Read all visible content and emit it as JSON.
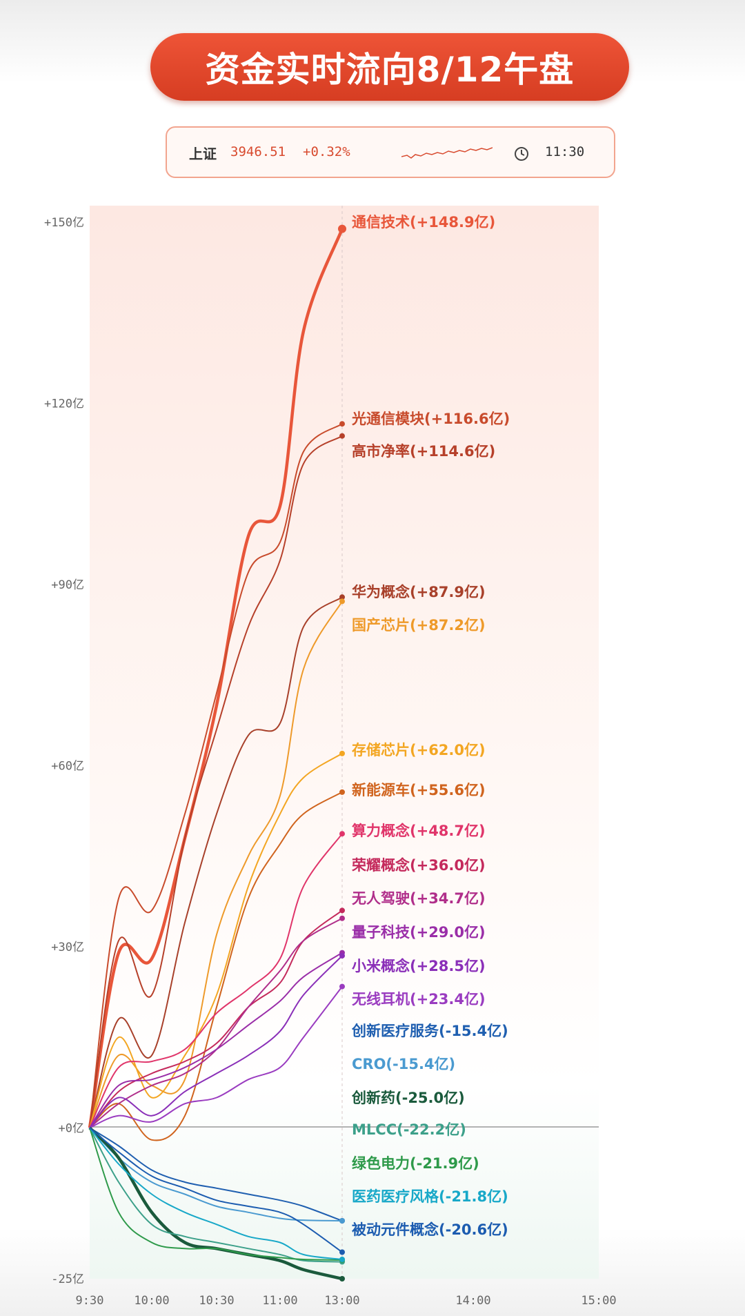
{
  "header": {
    "title": "资金实时流向8/12午盘"
  },
  "index_box": {
    "name": "上证",
    "value": "3946.51",
    "change": "+0.32%",
    "time": "11:30",
    "sparkline_icon": "sparkline-icon",
    "clock_icon": "clock-icon"
  },
  "chart_data": {
    "type": "line",
    "title": "资金实时流向8/12午盘",
    "xlabel": "",
    "ylabel": "",
    "x_ticks": [
      "9:30",
      "10:00",
      "10:30",
      "11:00",
      "13:00",
      "14:00",
      "15:00"
    ],
    "y_ticks": [
      "+150亿",
      "+120亿",
      "+90亿",
      "+60亿",
      "+30亿",
      "+0亿",
      "-25亿"
    ],
    "ylim": [
      -25,
      150
    ],
    "grid": false,
    "x": [
      "9:30",
      "9:45",
      "10:00",
      "10:15",
      "10:30",
      "10:45",
      "11:00",
      "11:15",
      "13:00"
    ],
    "series": [
      {
        "name": "通信技术",
        "label": "通信技术(+148.9亿)",
        "color": "#e8563a",
        "values": [
          0,
          29,
          28,
          48,
          70,
          98,
          103,
          132,
          148.9
        ]
      },
      {
        "name": "光通信模块",
        "label": "光通信模块(+116.6亿)",
        "color": "#c84b2c",
        "values": [
          0,
          38,
          36,
          52,
          72,
          92,
          97,
          112,
          116.6
        ]
      },
      {
        "name": "高市净率",
        "label": "高市净率(+114.6亿)",
        "color": "#b6402a",
        "values": [
          0,
          31,
          22,
          48,
          66,
          83,
          94,
          110,
          114.6
        ]
      },
      {
        "name": "华为概念",
        "label": "华为概念(+87.9亿)",
        "color": "#a8402a",
        "values": [
          0,
          18,
          12,
          34,
          52,
          65,
          67,
          83,
          87.9
        ]
      },
      {
        "name": "国产芯片",
        "label": "国产芯片(+87.2亿)",
        "color": "#ee9a2a",
        "values": [
          0,
          12,
          7,
          8,
          32,
          45,
          55,
          76,
          87.2
        ]
      },
      {
        "name": "存储芯片",
        "label": "存储芯片(+62.0亿)",
        "color": "#f3a622",
        "values": [
          0,
          15,
          5,
          12,
          22,
          40,
          52,
          58,
          62.0
        ]
      },
      {
        "name": "新能源车",
        "label": "新能源车(+55.6亿)",
        "color": "#d0641e",
        "values": [
          0,
          4,
          -2,
          2,
          20,
          38,
          47,
          52,
          55.6
        ]
      },
      {
        "name": "算力概念",
        "label": "算力概念(+48.7亿)",
        "color": "#e0356a",
        "values": [
          0,
          10,
          11,
          13,
          19,
          23,
          28,
          40,
          48.7
        ]
      },
      {
        "name": "荣耀概念",
        "label": "荣耀概念(+36.0亿)",
        "color": "#c42a5c",
        "values": [
          0,
          6,
          9,
          11,
          14,
          20,
          24,
          31,
          36.0
        ]
      },
      {
        "name": "无人驾驶",
        "label": "无人驾驶(+34.7亿)",
        "color": "#b02e8a",
        "values": [
          0,
          4,
          7,
          9,
          13,
          20,
          26,
          31,
          34.7
        ]
      },
      {
        "name": "量子科技",
        "label": "量子科技(+29.0亿)",
        "color": "#9a2ea8",
        "values": [
          0,
          7,
          8,
          10,
          13,
          17,
          21,
          25,
          29.0
        ]
      },
      {
        "name": "小米概念",
        "label": "小米概念(+28.5亿)",
        "color": "#8a2fb8",
        "values": [
          0,
          5,
          2,
          6,
          9,
          12,
          16,
          22,
          28.5
        ]
      },
      {
        "name": "无线耳机",
        "label": "无线耳机(+23.4亿)",
        "color": "#9a3cc0",
        "values": [
          0,
          2,
          1,
          4,
          5,
          8,
          10,
          15,
          23.4
        ]
      },
      {
        "name": "创新医疗服务",
        "label": "创新医疗服务(-15.4亿)",
        "color": "#1f5fb0",
        "values": [
          0,
          -3,
          -7,
          -9,
          -10,
          -11,
          -12,
          -13,
          -15.4
        ]
      },
      {
        "name": "CRO",
        "label": "CRO(-15.4亿)",
        "color": "#4a9ad0",
        "values": [
          0,
          -5,
          -9,
          -11,
          -13,
          -14,
          -15,
          -15.3,
          -15.4
        ]
      },
      {
        "name": "创新药",
        "label": "创新药(-25.0亿)",
        "color": "#1a5a3c",
        "values": [
          0,
          -5,
          -14,
          -19,
          -20,
          -21,
          -22,
          -23.5,
          -25.0
        ]
      },
      {
        "name": "MLCC",
        "label": "MLCC(-22.2亿)",
        "color": "#3ca08a",
        "values": [
          0,
          -9,
          -16,
          -18,
          -19,
          -20,
          -21,
          -22,
          -22.2
        ]
      },
      {
        "name": "绿色电力",
        "label": "绿色电力(-21.9亿)",
        "color": "#2e9a4a",
        "values": [
          0,
          -14,
          -19,
          -20,
          -20,
          -21,
          -21.5,
          -21.8,
          -21.9
        ]
      },
      {
        "name": "医药医疗风格",
        "label": "医药医疗风格(-21.8亿)",
        "color": "#18a8c8",
        "values": [
          0,
          -6,
          -11,
          -14,
          -16,
          -18,
          -19,
          -21,
          -21.8
        ]
      },
      {
        "name": "被动元件概念",
        "label": "被动元件概念(-20.6亿)",
        "color": "#1c5cb0",
        "values": [
          0,
          -4,
          -8,
          -10,
          -12,
          -13,
          -14,
          -16,
          -20.6
        ]
      }
    ]
  }
}
